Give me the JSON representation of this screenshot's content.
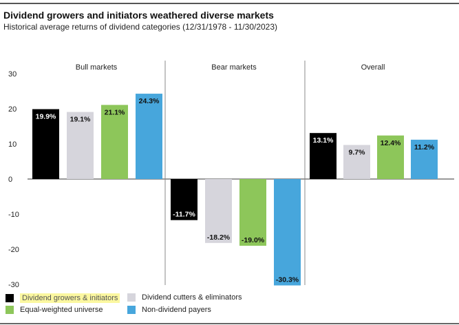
{
  "title": "Dividend growers and initiators weathered diverse markets",
  "subtitle": "Historical average returns of dividend categories (12/31/1978 - 11/30/2023)",
  "chart_data": {
    "type": "bar",
    "categories": [
      "Bull markets",
      "Bear markets",
      "Overall"
    ],
    "series": [
      {
        "name": "Dividend growers & initiators",
        "color": "#000000",
        "values": [
          19.9,
          -11.7,
          13.1
        ],
        "labels": [
          "19.9%",
          "-11.7%",
          "13.1%"
        ]
      },
      {
        "name": "Dividend cutters & eliminators",
        "color": "#d6d5dc",
        "values": [
          19.1,
          -18.2,
          9.7
        ],
        "labels": [
          "19.1%",
          "-18.2%",
          "9.7%"
        ]
      },
      {
        "name": "Equal-weighted universe",
        "color": "#8dc65a",
        "values": [
          21.1,
          -19.0,
          12.4
        ],
        "labels": [
          "21.1%",
          "-19.0%",
          "12.4%"
        ]
      },
      {
        "name": "Non-dividend payers",
        "color": "#47a6dc",
        "values": [
          24.3,
          -30.3,
          11.2
        ],
        "labels": [
          "24.3%",
          "-30.3%",
          "11.2%"
        ]
      }
    ],
    "yticks": [
      "30",
      "20",
      "10",
      "0",
      "-10",
      "-20",
      "-30"
    ],
    "ylim": [
      -30,
      30
    ],
    "grid": false,
    "legend_placement": "bottom-left",
    "highlighted_legend_entry": "Dividend growers & initiators"
  }
}
